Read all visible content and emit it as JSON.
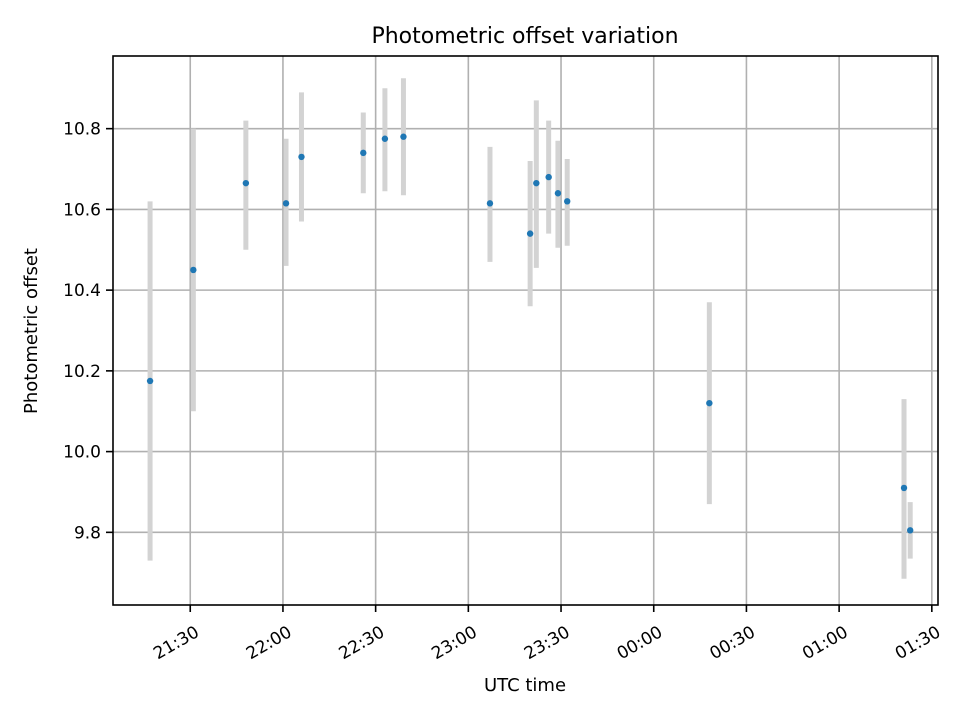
{
  "chart_data": {
    "type": "scatter",
    "title": "Photometric offset variation",
    "xlabel": "UTC time",
    "ylabel": "Photometric offset",
    "x_ticks": [
      "21:30",
      "22:00",
      "22:30",
      "23:00",
      "23:30",
      "00:00",
      "00:30",
      "01:00",
      "01:30"
    ],
    "x_tick_minutes": [
      0,
      30,
      60,
      90,
      120,
      150,
      180,
      210,
      240
    ],
    "xlim_minutes": [
      -25,
      242
    ],
    "y_ticks": [
      9.8,
      10.0,
      10.2,
      10.4,
      10.6,
      10.8
    ],
    "ylim": [
      9.62,
      10.98
    ],
    "grid": true,
    "x_axis_origin": "21:30",
    "series": [
      {
        "colors": {
          "point": "#1f77b4",
          "error_bar": "#d3d3d3"
        },
        "points": [
          {
            "t": "21:17",
            "y": 10.175,
            "ylo": 9.73,
            "yhi": 10.62
          },
          {
            "t": "21:31",
            "y": 10.45,
            "ylo": 10.1,
            "yhi": 10.8
          },
          {
            "t": "21:48",
            "y": 10.665,
            "ylo": 10.5,
            "yhi": 10.82
          },
          {
            "t": "22:01",
            "y": 10.615,
            "ylo": 10.46,
            "yhi": 10.775
          },
          {
            "t": "22:06",
            "y": 10.73,
            "ylo": 10.57,
            "yhi": 10.89
          },
          {
            "t": "22:26",
            "y": 10.74,
            "ylo": 10.64,
            "yhi": 10.84
          },
          {
            "t": "22:33",
            "y": 10.775,
            "ylo": 10.645,
            "yhi": 10.9
          },
          {
            "t": "22:39",
            "y": 10.78,
            "ylo": 10.635,
            "yhi": 10.925
          },
          {
            "t": "23:07",
            "y": 10.615,
            "ylo": 10.47,
            "yhi": 10.755
          },
          {
            "t": "23:20",
            "y": 10.54,
            "ylo": 10.36,
            "yhi": 10.72
          },
          {
            "t": "23:22",
            "y": 10.665,
            "ylo": 10.455,
            "yhi": 10.87
          },
          {
            "t": "23:26",
            "y": 10.68,
            "ylo": 10.54,
            "yhi": 10.82
          },
          {
            "t": "23:29",
            "y": 10.64,
            "ylo": 10.505,
            "yhi": 10.77
          },
          {
            "t": "23:32",
            "y": 10.62,
            "ylo": 10.51,
            "yhi": 10.725
          },
          {
            "t": "00:18",
            "y": 10.12,
            "ylo": 9.87,
            "yhi": 10.37
          },
          {
            "t": "01:21",
            "y": 9.91,
            "ylo": 9.685,
            "yhi": 10.13
          },
          {
            "t": "01:23",
            "y": 9.805,
            "ylo": 9.735,
            "yhi": 9.875
          }
        ]
      }
    ]
  }
}
